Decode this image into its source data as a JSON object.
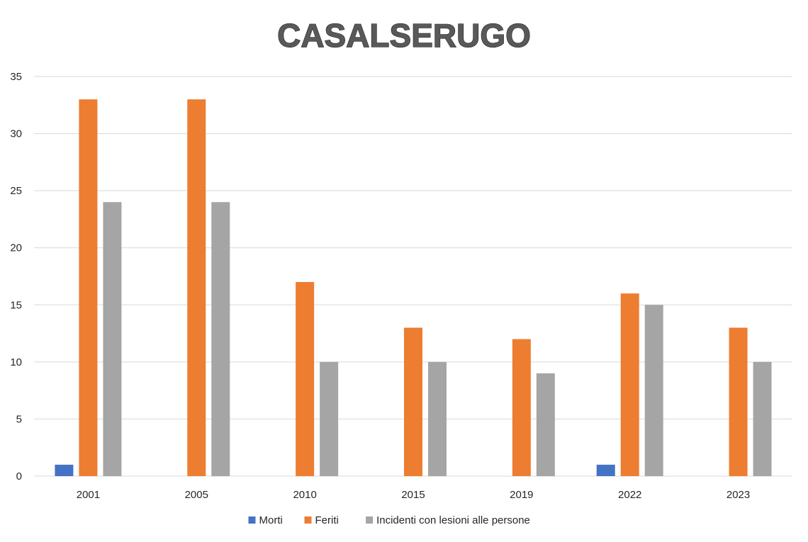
{
  "chart_data": {
    "type": "bar",
    "title": "CASALSERUGO",
    "categories": [
      "2001",
      "2005",
      "2010",
      "2015",
      "2019",
      "2022",
      "2023"
    ],
    "series": [
      {
        "name": "Morti",
        "color": "#4472C4",
        "values": [
          1,
          0,
          0,
          0,
          0,
          1,
          0
        ]
      },
      {
        "name": "Feriti",
        "color": "#ED7D31",
        "values": [
          33,
          33,
          17,
          13,
          12,
          16,
          13
        ]
      },
      {
        "name": "Incidenti con lesioni alle persone",
        "color": "#A5A5A5",
        "values": [
          24,
          24,
          10,
          10,
          9,
          15,
          10
        ]
      }
    ],
    "ylim": [
      0,
      35
    ],
    "yticks": [
      "0",
      "5",
      "10",
      "15",
      "20",
      "25",
      "30",
      "35"
    ],
    "grid": true,
    "legend_position": "bottom"
  }
}
